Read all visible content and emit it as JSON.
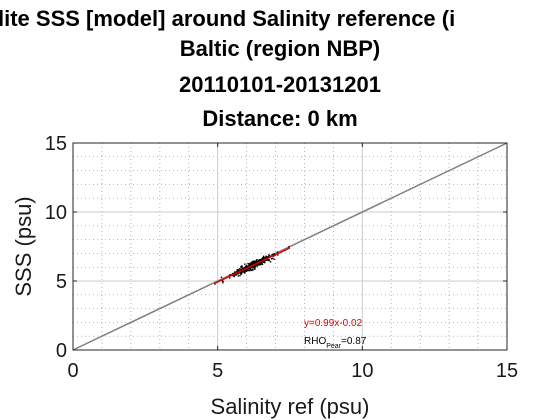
{
  "title_lines": [
    "lite SSS [model] around Salinity reference (i",
    "Baltic (region NBP)",
    "20110101-20131201",
    "Distance: 0 km"
  ],
  "chart_data": {
    "type": "scatter",
    "xlabel": "Salinity ref (psu)",
    "ylabel": "SSS (psu)",
    "xlim": [
      0,
      15
    ],
    "ylim": [
      0,
      15
    ],
    "xticks": [
      0,
      5,
      10,
      15
    ],
    "yticks": [
      0,
      5,
      10,
      15
    ],
    "grid": true,
    "minor_grid": true,
    "identity_line": true,
    "fit": {
      "slope": 0.99,
      "intercept": -0.02,
      "label": "y=0.99x-0.02"
    },
    "correlation": {
      "prefix": "RHO",
      "subscript": "Pear",
      "value_text": "=0.87"
    },
    "cluster": {
      "x_range": [
        4.9,
        7.5
      ],
      "y_center_slope": 0.99,
      "y_center_intercept": -0.02,
      "spread": 0.35
    },
    "colors": {
      "points": "#000000",
      "fit": "#e00000",
      "identity": "#808080",
      "grid": "#cccccc"
    }
  }
}
